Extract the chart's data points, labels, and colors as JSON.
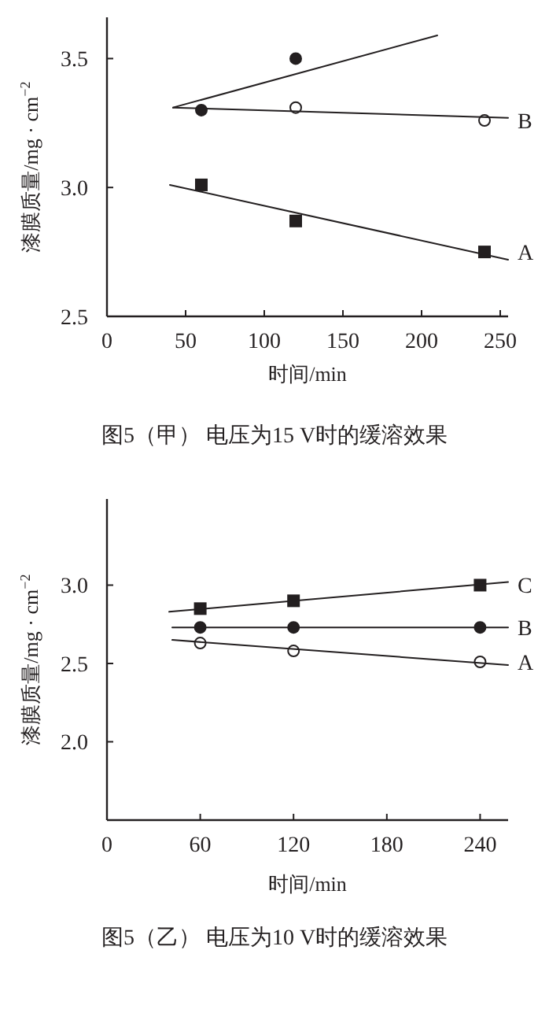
{
  "chart_data": [
    {
      "type": "scatter",
      "title": "图5（甲） 电压为15 V时的缓溶效果",
      "xlabel": "时间/min",
      "ylabel": "漆膜质量/mg · cm$^{−2}$",
      "xlim": [
        0,
        255
      ],
      "ylim": [
        2.5,
        3.66
      ],
      "xticks": [
        0,
        50,
        100,
        150,
        200,
        250
      ],
      "yticks": [
        {
          "value": 2.5,
          "label": "2.5"
        },
        {
          "value": 3.0,
          "label": "3.0"
        },
        {
          "value": 3.5,
          "label": "3.5"
        }
      ],
      "series": [
        {
          "marker": "circle",
          "color": "#231f20",
          "x": [
            60,
            120
          ],
          "values": [
            3.3,
            3.5
          ]
        },
        {
          "type": "line",
          "color": "#231f20",
          "x": [
            42,
            210
          ],
          "values": [
            3.31,
            3.59
          ]
        },
        {
          "name": "B",
          "marker": "circle",
          "color": "#ffffff",
          "x": [
            120,
            240
          ],
          "values": [
            3.31,
            3.26
          ]
        },
        {
          "type": "line",
          "color": "#231f20",
          "x": [
            42,
            255
          ],
          "values": [
            3.31,
            3.27
          ]
        },
        {
          "name": "A",
          "marker": "square",
          "color": "#231f20",
          "x": [
            60,
            120,
            240
          ],
          "values": [
            3.01,
            2.87,
            2.75
          ]
        },
        {
          "type": "line",
          "color": "#231f20",
          "x": [
            40,
            255
          ],
          "values": [
            3.01,
            2.72
          ]
        }
      ]
    },
    {
      "type": "scatter",
      "title": "图5（乙） 电压为10 V时的缓溶效果",
      "xlabel": "时间/min",
      "ylabel": "漆膜质量/mg · cm$^{−2}$",
      "xlim": [
        0,
        258
      ],
      "ylim": [
        1.5,
        3.55
      ],
      "xticks": [
        0,
        60,
        120,
        180,
        240
      ],
      "yticks": [
        {
          "value": 2.0,
          "label": "2.0"
        },
        {
          "value": 2.5,
          "label": "2.5"
        },
        {
          "value": 3.0,
          "label": "3.0"
        }
      ],
      "series": [
        {
          "name": "C",
          "marker": "square",
          "color": "#231f20",
          "x": [
            60,
            120,
            240
          ],
          "values": [
            2.85,
            2.9,
            3.0
          ]
        },
        {
          "type": "line",
          "color": "#231f20",
          "x": [
            40,
            258
          ],
          "values": [
            2.83,
            3.02
          ]
        },
        {
          "name": "B",
          "marker": "circle",
          "color": "#231f20",
          "x": [
            60,
            120,
            240
          ],
          "values": [
            2.73,
            2.73,
            2.73
          ]
        },
        {
          "type": "line",
          "color": "#231f20",
          "x": [
            42,
            258
          ],
          "values": [
            2.73,
            2.73
          ]
        },
        {
          "name": "A",
          "marker": "circle",
          "color": "#ffffff",
          "x": [
            60,
            120,
            240
          ],
          "values": [
            2.63,
            2.58,
            2.51
          ]
        },
        {
          "type": "line",
          "color": "#231f20",
          "x": [
            42,
            258
          ],
          "values": [
            2.65,
            2.49
          ]
        }
      ]
    }
  ]
}
